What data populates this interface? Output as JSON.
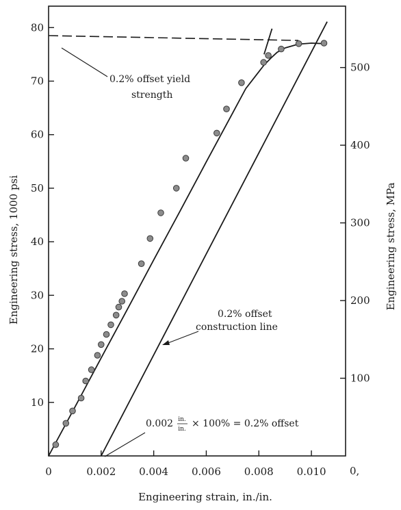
{
  "chart_data": {
    "type": "scatter",
    "xlabel": "Engineering strain, in./in.",
    "ylabel_left": "Engineering stress, 1000 psi",
    "ylabel_right": "Engineering stress, MPa",
    "xlim": [
      0,
      0.0113
    ],
    "ylim_left": [
      0,
      84
    ],
    "ylim_right": [
      0,
      579
    ],
    "x_ticks": [
      0,
      0.002,
      0.004,
      0.006,
      0.008,
      0.01
    ],
    "x_tick_labels": [
      "0",
      "0.002",
      "0.004",
      "0.006",
      "0.008",
      "0.010"
    ],
    "y_left_ticks": [
      10,
      20,
      30,
      40,
      50,
      60,
      70,
      80
    ],
    "y_left_tick_labels": [
      "10",
      "20",
      "30",
      "40",
      "50",
      "60",
      "70",
      "80"
    ],
    "y_right_ticks": [
      100,
      200,
      300,
      400,
      500
    ],
    "y_right_tick_labels": [
      "100",
      "200",
      "300",
      "400",
      "500"
    ],
    "y_right_zero_label": "0,",
    "grid": false,
    "yield_strength_ksi": 78.5,
    "series": [
      {
        "kind": "points",
        "x": [
          0.00027,
          0.00066,
          0.00091,
          0.00124,
          0.00141,
          0.00163,
          0.00186,
          0.002,
          0.0022,
          0.00237,
          0.00257,
          0.00267,
          0.00279,
          0.00289,
          0.00353,
          0.00386,
          0.00427,
          0.00486,
          0.00522,
          0.0064,
          0.00677,
          0.00734,
          0.00818,
          0.00836,
          0.00885,
          0.00952,
          0.01048
        ],
        "y": [
          2.1,
          6.1,
          8.4,
          10.8,
          14.0,
          16.1,
          18.8,
          20.8,
          22.7,
          24.5,
          26.3,
          27.8,
          28.9,
          30.3,
          35.9,
          40.6,
          45.4,
          50.0,
          55.6,
          60.3,
          64.8,
          69.7,
          73.5,
          74.8,
          76.0,
          77.0,
          77.1
        ]
      },
      {
        "kind": "curve",
        "x": [
          0.0,
          0.001,
          0.002,
          0.003,
          0.004,
          0.005,
          0.006,
          0.007,
          0.0075,
          0.0082,
          0.0085,
          0.0087,
          0.009,
          0.0095,
          0.01,
          0.0105
        ],
        "y": [
          0.0,
          9.1,
          18.3,
          27.4,
          36.6,
          45.7,
          54.9,
          64.0,
          68.6,
          73.0,
          74.5,
          75.4,
          76.2,
          76.9,
          77.1,
          77.0
        ]
      },
      {
        "kind": "elastic_extension",
        "x": [
          0.0082,
          0.0085
        ],
        "y": [
          75.0,
          79.8
        ]
      },
      {
        "kind": "offset_line",
        "x": [
          0.002,
          0.0106
        ],
        "y": [
          0.0,
          81.1
        ]
      },
      {
        "kind": "dashed_line",
        "x": [
          0.0,
          0.0095
        ],
        "y": [
          78.5,
          77.6
        ]
      }
    ],
    "annotations": [
      {
        "lines": [
          "0.2% offset yield",
          "strength"
        ]
      },
      {
        "lines": [
          "0.2% offset",
          "construction line"
        ]
      },
      {
        "prefix": "0.002",
        "frac_num": "in.",
        "frac_den": "in.",
        "suffix": "× 100% = 0.2% offset"
      }
    ]
  }
}
